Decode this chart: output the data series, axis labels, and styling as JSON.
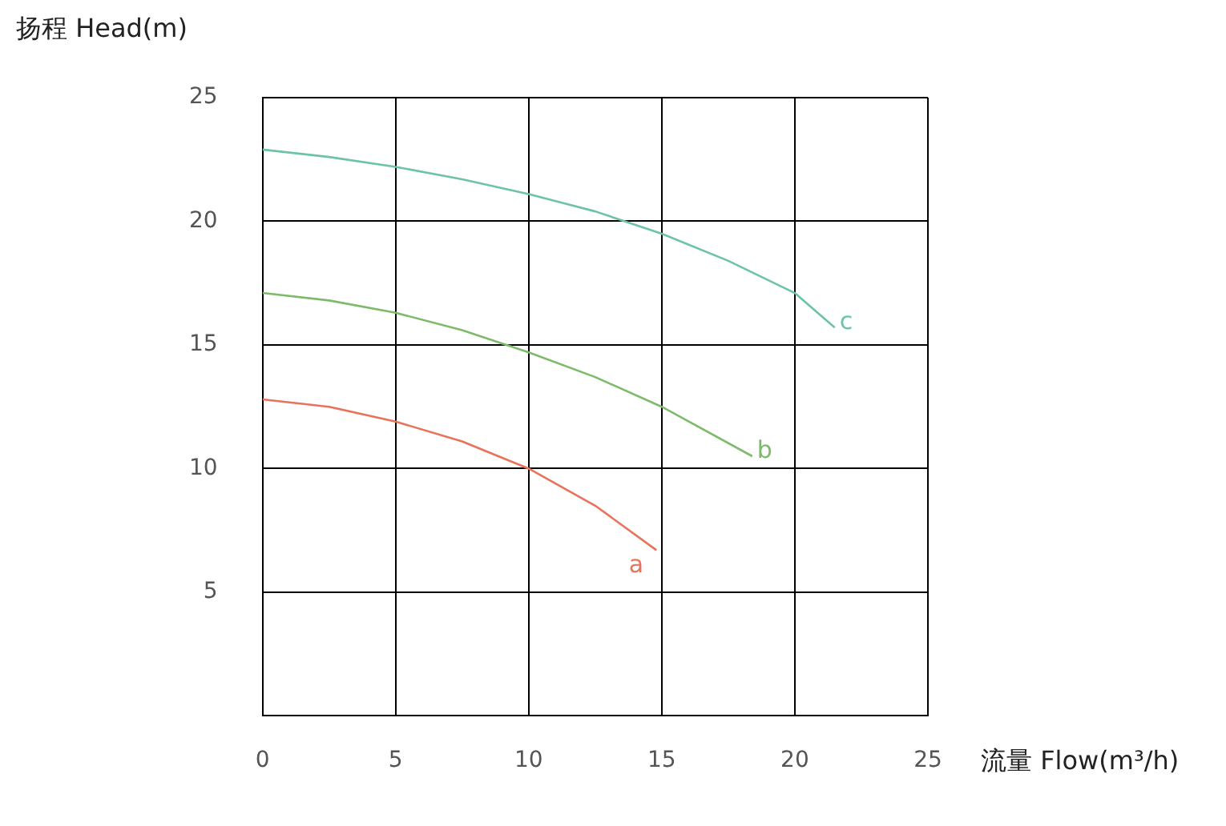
{
  "chart_data": {
    "type": "line",
    "xlabel": "流量 Flow(m³/h)",
    "ylabel": "扬程 Head(m)",
    "xlim": [
      0,
      25
    ],
    "xticks": [
      0,
      5,
      10,
      15,
      20,
      25
    ],
    "ylim": [
      0,
      25
    ],
    "yticks": [
      {
        "value": 0,
        "label": null
      },
      5,
      10,
      15,
      20,
      25
    ],
    "grid": true,
    "legend": false,
    "marker": "none",
    "line_style": "solid",
    "series": [
      {
        "name": "a",
        "color": "#e8735a",
        "x": [
          0,
          2.5,
          5,
          7.5,
          10,
          12.5,
          14.8
        ],
        "values": [
          12.8,
          12.5,
          11.9,
          11.1,
          10.0,
          8.5,
          6.7
        ]
      },
      {
        "name": "b",
        "color": "#7dbb6a",
        "x": [
          0,
          2.5,
          5,
          7.5,
          10,
          12.5,
          15,
          18.4
        ],
        "values": [
          17.1,
          16.8,
          16.3,
          15.6,
          14.7,
          13.7,
          12.5,
          10.5
        ]
      },
      {
        "name": "c",
        "color": "#6cc3a5",
        "x": [
          0,
          2.5,
          5,
          7.5,
          10,
          12.5,
          15,
          17.5,
          20,
          21.5
        ],
        "values": [
          22.9,
          22.6,
          22.2,
          21.7,
          21.1,
          20.4,
          19.5,
          18.4,
          17.1,
          15.7
        ]
      }
    ]
  }
}
